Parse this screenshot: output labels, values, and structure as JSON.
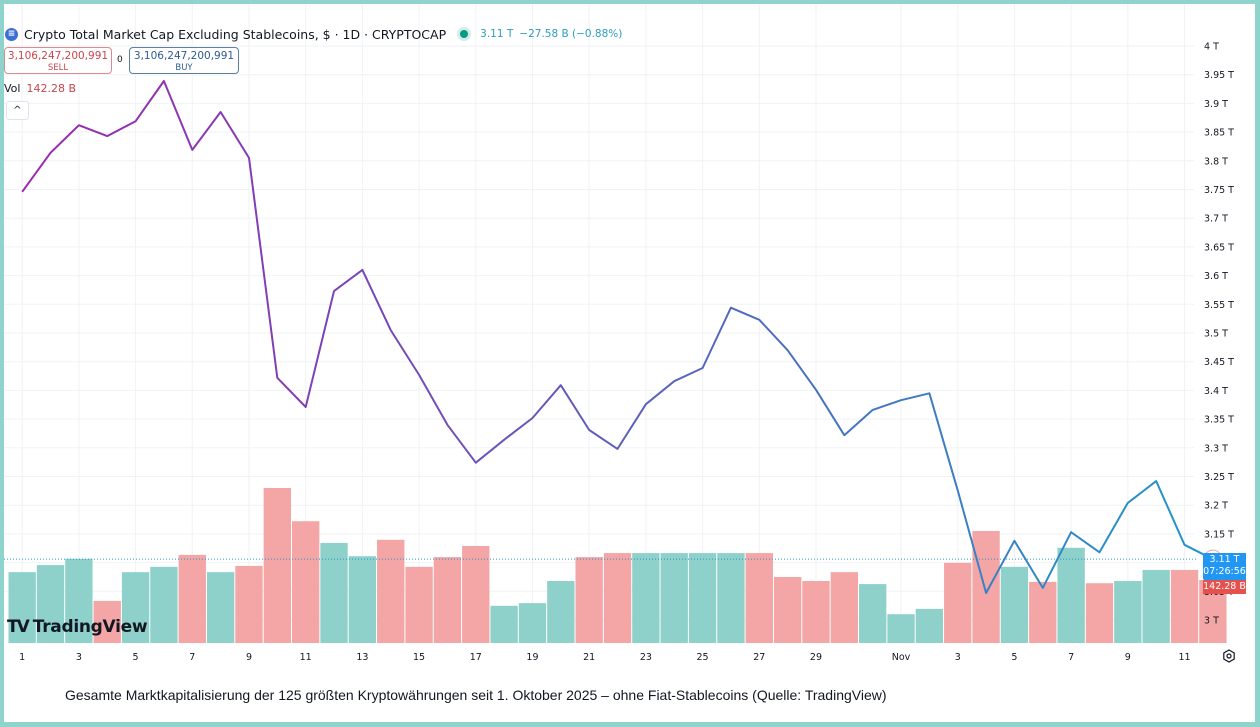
{
  "header": {
    "symbol_title": "Crypto Total Market Cap Excluding Stablecoins, $ · 1D · CRYPTOCAP",
    "last_value": "3.11 T",
    "change": "−27.58 B (−0.88%)",
    "symbol_icon": "cryptocap-logo-icon",
    "status_icon": "market-open-dot-icon"
  },
  "trade": {
    "sell_price": "3,106,247,200,991",
    "sell_label": "SELL",
    "spread": "0",
    "buy_price": "3,106,247,200,991",
    "buy_label": "BUY"
  },
  "volume_legend": {
    "label": "Vol",
    "value": "142.28 B"
  },
  "collapse_icon": "^",
  "branding": {
    "logo_mark": "TV",
    "logo_text": "TradingView"
  },
  "price_tag": {
    "value": "3.11 T",
    "countdown": "07:26:56"
  },
  "volume_tag": {
    "value": "142.28 B"
  },
  "caption": "Gesamte Marktkapitalisierung der 125 größten Kryptowährungen seit 1. Oktober 2025 – ohne Fiat-Stablecoins (Quelle: TradingView)",
  "colors": {
    "line_start": "#9c27b0",
    "line_end": "#2196c9",
    "volume_up": "#8ed1cb",
    "volume_down": "#f4a6a6",
    "price_tag": "#2196f3",
    "volume_tag": "#e5524e",
    "frame": "#8fd3cd"
  },
  "chart_data": {
    "type": "line",
    "title": "Crypto Total Market Cap Excluding Stablecoins, $ · 1D · CRYPTOCAP",
    "xlabel": "",
    "ylabel": "",
    "y_unit": "T",
    "ylim": [
      2.97,
      4.0
    ],
    "yticks": [
      3.0,
      3.05,
      3.1,
      3.15,
      3.2,
      3.25,
      3.3,
      3.35,
      3.4,
      3.45,
      3.5,
      3.55,
      3.6,
      3.65,
      3.7,
      3.75,
      3.8,
      3.85,
      3.9,
      3.95,
      4.0
    ],
    "ytick_labels": [
      "3 T",
      "3.05 T",
      "3.1 T",
      "3.15 T",
      "3.2 T",
      "3.25 T",
      "3.3 T",
      "3.35 T",
      "3.4 T",
      "3.45 T",
      "3.5 T",
      "3.55 T",
      "3.6 T",
      "3.65 T",
      "3.7 T",
      "3.75 T",
      "3.8 T",
      "3.85 T",
      "3.9 T",
      "3.95 T",
      "4 T"
    ],
    "x_tick_labels": [
      "1",
      "3",
      "5",
      "7",
      "9",
      "11",
      "13",
      "15",
      "17",
      "19",
      "21",
      "23",
      "25",
      "27",
      "29",
      "Nov",
      "3",
      "5",
      "7",
      "9",
      "11"
    ],
    "x_tick_index": [
      0,
      2,
      4,
      6,
      8,
      10,
      12,
      14,
      16,
      18,
      20,
      22,
      24,
      26,
      28,
      31,
      33,
      35,
      37,
      39,
      41
    ],
    "grid": true,
    "x": [
      "Oct 1",
      "Oct 2",
      "Oct 3",
      "Oct 4",
      "Oct 5",
      "Oct 6",
      "Oct 7",
      "Oct 8",
      "Oct 9",
      "Oct 10",
      "Oct 11",
      "Oct 12",
      "Oct 13",
      "Oct 14",
      "Oct 15",
      "Oct 16",
      "Oct 17",
      "Oct 18",
      "Oct 19",
      "Oct 20",
      "Oct 21",
      "Oct 22",
      "Oct 23",
      "Oct 24",
      "Oct 25",
      "Oct 26",
      "Oct 27",
      "Oct 28",
      "Oct 29",
      "Oct 30",
      "Oct 31",
      "Nov 1",
      "Nov 2",
      "Nov 3",
      "Nov 4",
      "Nov 5",
      "Nov 6",
      "Nov 7",
      "Nov 8",
      "Nov 9",
      "Nov 10",
      "Nov 11",
      "Nov 12"
    ],
    "series": [
      {
        "name": "Market Cap (T)",
        "values": [
          3.746,
          3.814,
          3.862,
          3.843,
          3.869,
          3.939,
          3.819,
          3.885,
          3.805,
          3.422,
          3.371,
          3.573,
          3.61,
          3.505,
          3.427,
          3.34,
          3.274,
          3.314,
          3.352,
          3.409,
          3.331,
          3.298,
          3.376,
          3.416,
          3.439,
          3.544,
          3.523,
          3.47,
          3.401,
          3.322,
          3.366,
          3.383,
          3.395,
          3.226,
          3.047,
          3.138,
          3.056,
          3.153,
          3.118,
          3.204,
          3.242,
          3.131,
          3.106
        ]
      },
      {
        "name": "Volume (B)",
        "values": [
          160,
          176,
          190,
          95,
          160,
          172,
          199,
          160,
          174,
          350,
          275,
          226,
          196,
          233,
          172,
          194,
          219,
          84,
          90,
          140,
          194,
          203,
          203,
          203,
          203,
          203,
          203,
          149,
          140,
          160,
          133,
          65,
          77,
          181,
          253,
          172,
          138,
          215,
          135,
          140,
          165,
          165,
          142.28
        ],
        "direction": [
          "up",
          "up",
          "up",
          "down",
          "up",
          "up",
          "down",
          "up",
          "down",
          "down",
          "down",
          "up",
          "up",
          "down",
          "down",
          "down",
          "down",
          "up",
          "up",
          "up",
          "down",
          "down",
          "up",
          "up",
          "up",
          "up",
          "down",
          "down",
          "down",
          "down",
          "up",
          "up",
          "up",
          "down",
          "down",
          "up",
          "down",
          "up",
          "down",
          "up",
          "up",
          "down",
          "down"
        ]
      }
    ],
    "last_price_line": 3.106,
    "legend": "top-left"
  }
}
